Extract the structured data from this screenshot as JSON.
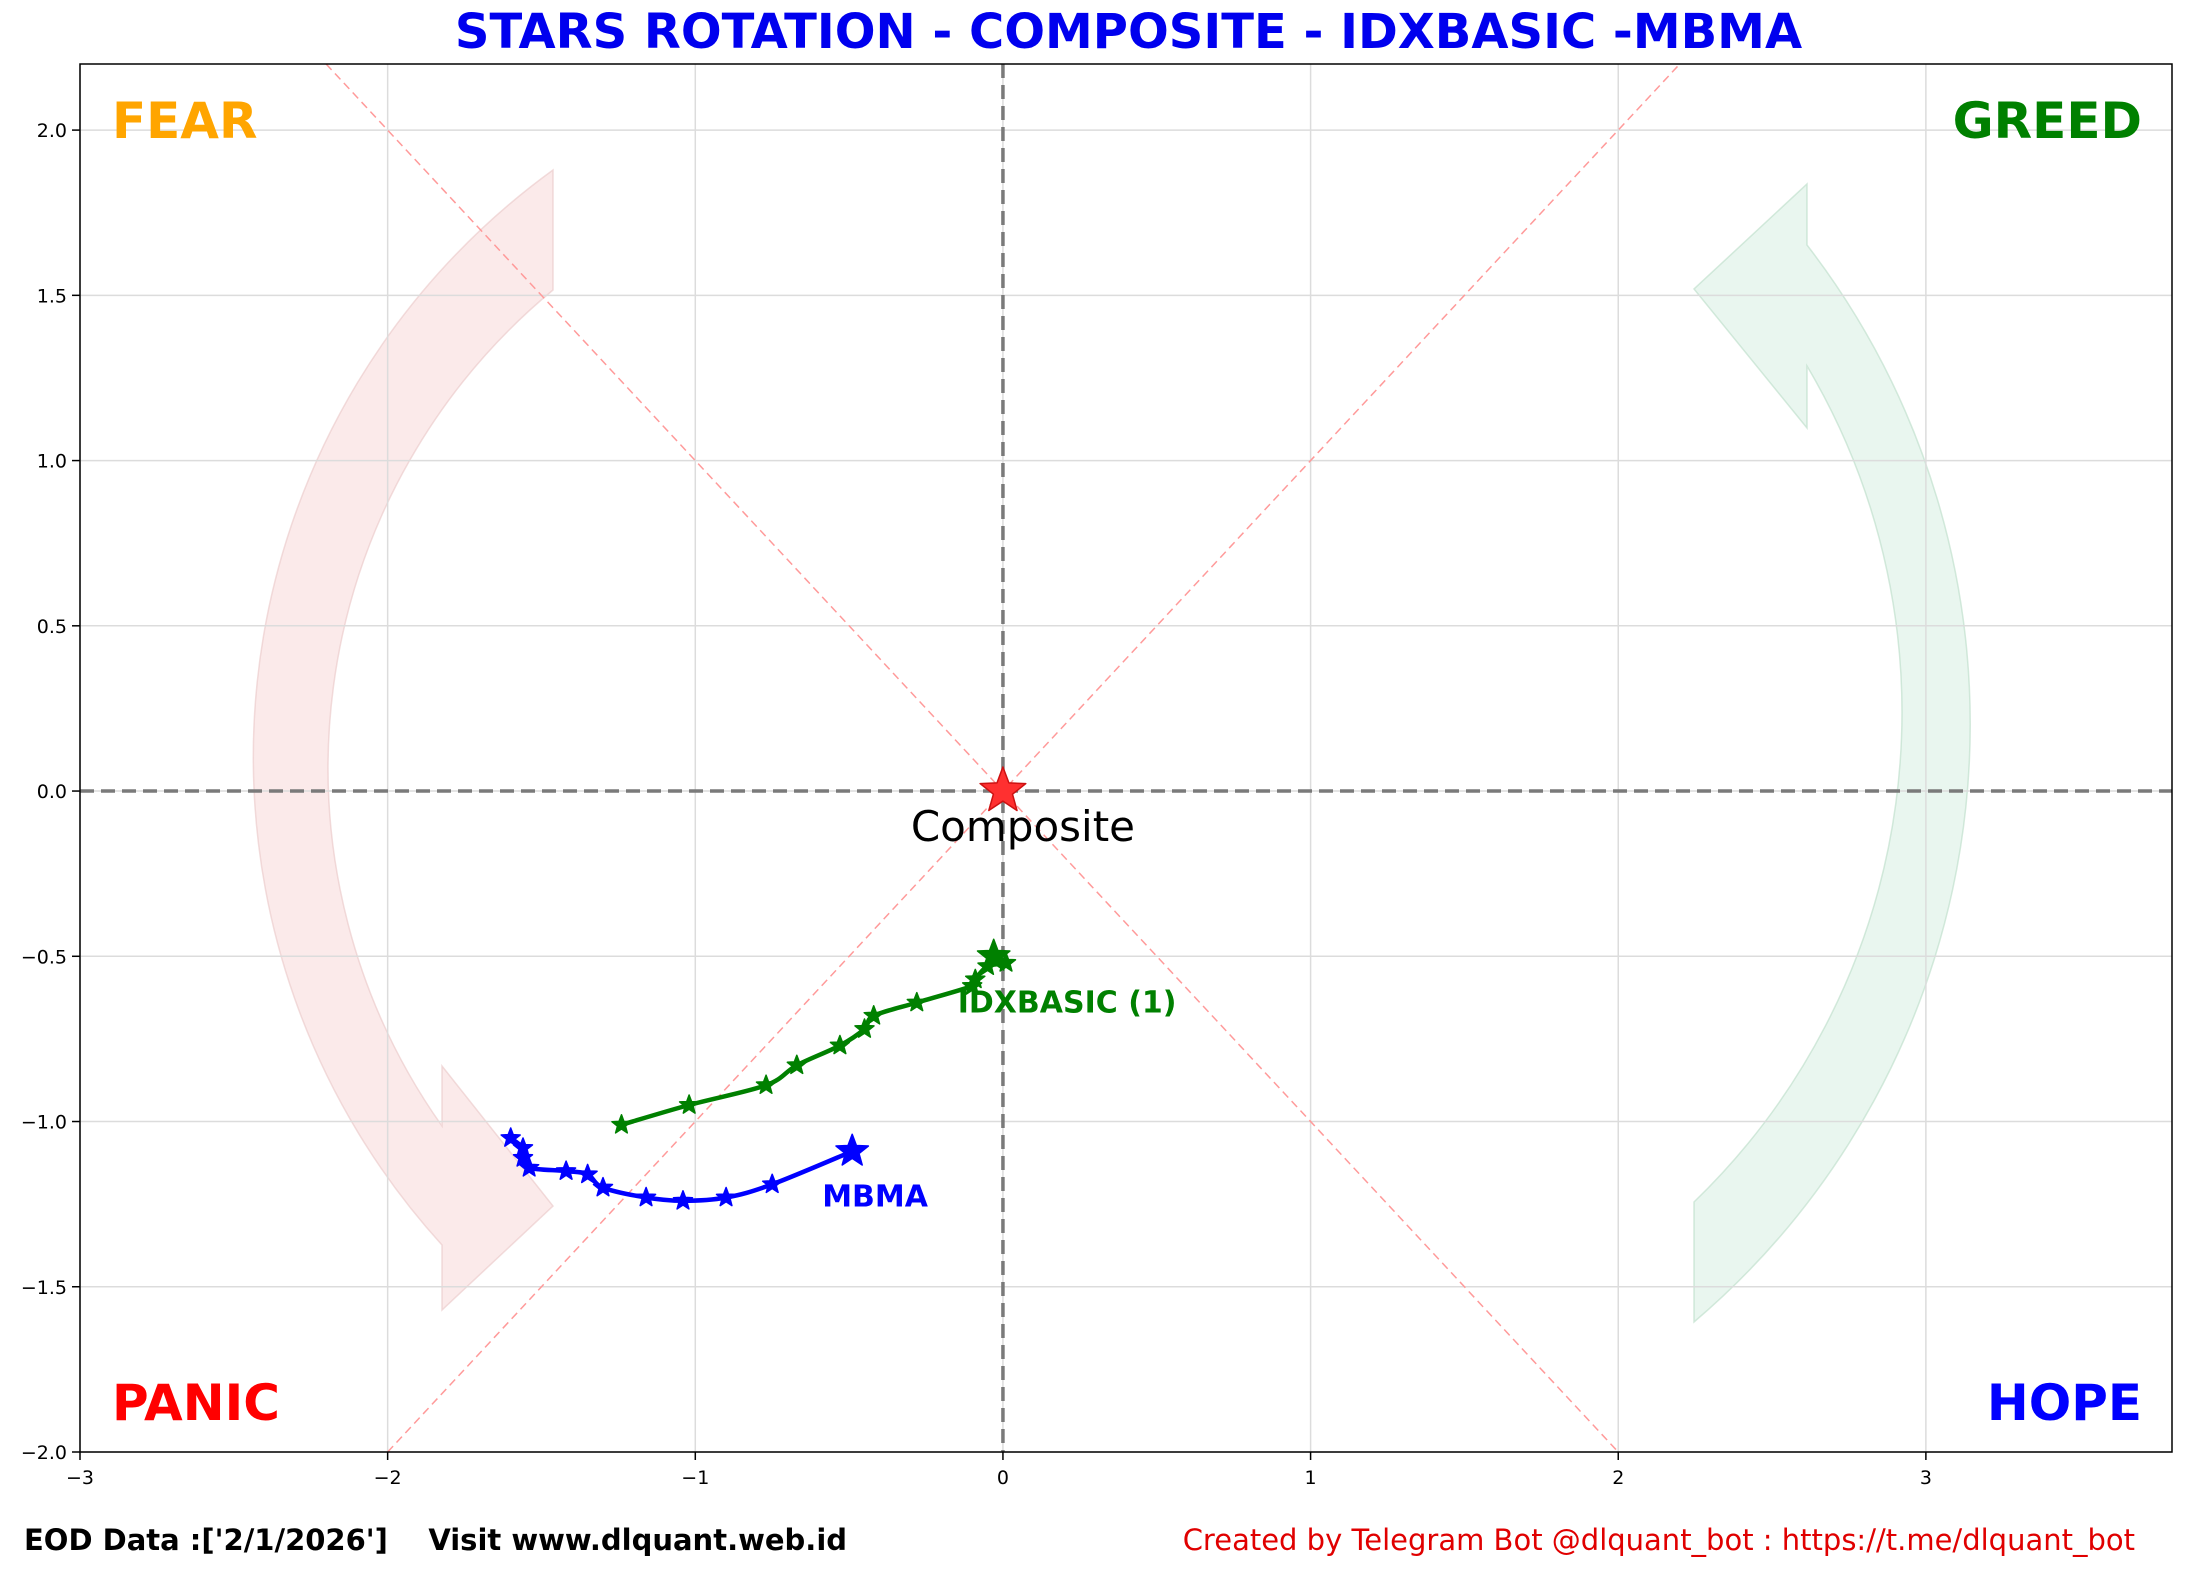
{
  "chart_data": {
    "type": "scatter",
    "title": "STARS ROTATION - COMPOSITE - IDXBASIC -MBMA",
    "xlim": [
      -3,
      3.8
    ],
    "ylim": [
      -2.0,
      2.2
    ],
    "x_ticks": [
      -3,
      -2,
      -1,
      0,
      1,
      2,
      3
    ],
    "x_tick_labels": [
      "−3",
      "−2",
      "−1",
      "0",
      "1",
      "2",
      "3"
    ],
    "y_ticks": [
      -2.0,
      -1.5,
      -1.0,
      -0.5,
      0.0,
      0.5,
      1.0,
      1.5,
      2.0
    ],
    "y_tick_labels": [
      "−2.0",
      "−1.5",
      "−1.0",
      "−0.5",
      "0.0",
      "0.5",
      "1.0",
      "1.5",
      "2.0"
    ],
    "grid": true,
    "quadrant_labels": {
      "top_left": {
        "text": "FEAR",
        "color": "#ffa500"
      },
      "top_right": {
        "text": "GREED",
        "color": "#008000"
      },
      "bottom_left": {
        "text": "PANIC",
        "color": "#ff0000"
      },
      "bottom_right": {
        "text": "HOPE",
        "color": "#0000ff"
      }
    },
    "center": {
      "name": "Composite",
      "x": 0,
      "y": 0,
      "color": "#ff0000"
    },
    "series": [
      {
        "name": "IDXBASIC (1)",
        "color": "#008000",
        "x": [
          -1.24,
          -1.02,
          -0.77,
          -0.67,
          -0.53,
          -0.45,
          -0.42,
          -0.28,
          -0.1,
          -0.09,
          -0.05,
          0.01,
          -0.03
        ],
        "y": [
          -1.01,
          -0.95,
          -0.89,
          -0.83,
          -0.77,
          -0.72,
          -0.68,
          -0.64,
          -0.59,
          -0.57,
          -0.53,
          -0.52,
          -0.5
        ]
      },
      {
        "name": "MBMA",
        "color": "#0000ff",
        "x": [
          -1.6,
          -1.56,
          -1.56,
          -1.54,
          -1.42,
          -1.35,
          -1.3,
          -1.16,
          -1.04,
          -0.9,
          -0.75,
          -0.49
        ],
        "y": [
          -1.05,
          -1.08,
          -1.11,
          -1.14,
          -1.15,
          -1.16,
          -1.2,
          -1.23,
          -1.24,
          -1.23,
          -1.19,
          -1.09
        ]
      }
    ]
  },
  "footer": {
    "eod_text": "EOD Data :['2/1/2026']",
    "visit_text": "Visit www.dlquant.web.id",
    "credit_text": "Created by Telegram Bot @dlquant_bot : https://t.me/dlquant_bot"
  }
}
